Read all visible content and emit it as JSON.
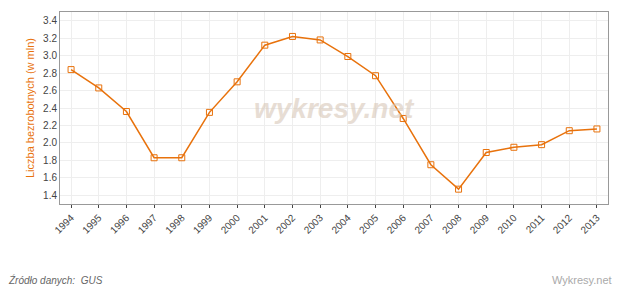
{
  "chart_data": {
    "type": "line",
    "x": [
      1994,
      1995,
      1996,
      1997,
      1998,
      1999,
      2000,
      2001,
      2002,
      2003,
      2004,
      2005,
      2006,
      2007,
      2008,
      2009,
      2010,
      2011,
      2012,
      2013
    ],
    "values": [
      2.84,
      2.63,
      2.36,
      1.83,
      1.83,
      2.35,
      2.7,
      3.12,
      3.22,
      3.18,
      2.99,
      2.77,
      2.28,
      1.75,
      1.47,
      1.89,
      1.95,
      1.98,
      2.14,
      2.16
    ],
    "color": "#E8720C",
    "marker": "square-open",
    "line_style": "solid",
    "y_label": "Liczba bezrobotnych (w mln)",
    "xlim": [
      1993.6,
      2013.4
    ],
    "xticks": [
      1994,
      1995,
      1996,
      1997,
      1998,
      1999,
      2000,
      2001,
      2002,
      2003,
      2004,
      2005,
      2006,
      2007,
      2008,
      2009,
      2010,
      2011,
      2012,
      2013
    ],
    "ylim": [
      1.3,
      3.5
    ],
    "yticks": [
      1.4,
      1.6,
      1.8,
      {
        "value": 2,
        "label": "2.0"
      },
      2.2,
      2.4,
      2.6,
      2.8,
      {
        "value": 3,
        "label": "3.0"
      },
      3.2,
      3.4
    ],
    "grid": true,
    "annotations": [
      "wykresy.net",
      "Źródło danych:  GUS",
      "Wykresy.net"
    ]
  }
}
